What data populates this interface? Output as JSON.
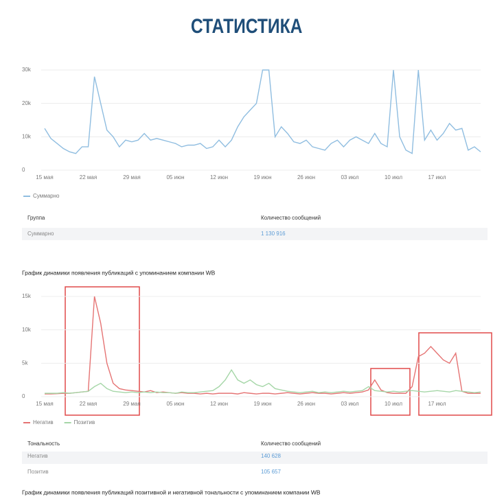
{
  "title": "СТАТИСТИКА",
  "chart_data": [
    {
      "type": "line",
      "categories": [
        "15 мая",
        null,
        null,
        null,
        null,
        null,
        null,
        "22 мая",
        null,
        null,
        null,
        null,
        null,
        null,
        "29 мая",
        null,
        null,
        null,
        null,
        null,
        null,
        "05 июн",
        null,
        null,
        null,
        null,
        null,
        null,
        "12 июн",
        null,
        null,
        null,
        null,
        null,
        null,
        "19 июн",
        null,
        null,
        null,
        null,
        null,
        null,
        "26 июн",
        null,
        null,
        null,
        null,
        null,
        null,
        "03 июл",
        null,
        null,
        null,
        null,
        null,
        null,
        "10 июл",
        null,
        null,
        null,
        null,
        null,
        null,
        "17 июл",
        null,
        null,
        null,
        null,
        null,
        null,
        null
      ],
      "series": [
        {
          "name": "Суммарно",
          "color": "#8fbde0",
          "values": [
            12500,
            9500,
            8000,
            6500,
            5500,
            5000,
            7000,
            7000,
            28000,
            20000,
            12000,
            10000,
            7000,
            9000,
            8500,
            9000,
            11000,
            9000,
            9500,
            9000,
            8500,
            8000,
            7000,
            7500,
            7500,
            8000,
            6500,
            7000,
            9000,
            7000,
            9000,
            13000,
            16000,
            18000,
            20000,
            30000,
            30000,
            10000,
            13000,
            11000,
            8500,
            8000,
            9000,
            7000,
            6500,
            6000,
            8000,
            9000,
            7000,
            9000,
            10000,
            9000,
            8000,
            11000,
            8000,
            7000,
            30000,
            10000,
            6000,
            5000,
            30000,
            9000,
            12000,
            9000,
            11000,
            14000,
            12000,
            12500,
            6000,
            7000,
            5500
          ]
        }
      ],
      "ylim": [
        0,
        30000
      ],
      "yticks": [
        0,
        {
          "value": 10000,
          "label": "10k"
        },
        {
          "value": 20000,
          "label": "20k"
        },
        {
          "value": 30000,
          "label": "30k"
        }
      ],
      "grid": true
    },
    {
      "type": "line",
      "categories": [
        "15 мая",
        null,
        null,
        null,
        null,
        null,
        null,
        "22 мая",
        null,
        null,
        null,
        null,
        null,
        null,
        "29 мая",
        null,
        null,
        null,
        null,
        null,
        null,
        "05 июн",
        null,
        null,
        null,
        null,
        null,
        null,
        "12 июн",
        null,
        null,
        null,
        null,
        null,
        null,
        "19 июн",
        null,
        null,
        null,
        null,
        null,
        null,
        "26 июн",
        null,
        null,
        null,
        null,
        null,
        null,
        "03 июл",
        null,
        null,
        null,
        null,
        null,
        null,
        "10 июл",
        null,
        null,
        null,
        null,
        null,
        null,
        "17 июл",
        null,
        null,
        null,
        null,
        null,
        null,
        null
      ],
      "series": [
        {
          "name": "Негатив",
          "color": "#e57373",
          "values": [
            400,
            400,
            450,
            500,
            500,
            600,
            700,
            800,
            15000,
            11000,
            5000,
            2000,
            1200,
            1000,
            900,
            800,
            700,
            900,
            600,
            700,
            600,
            500,
            600,
            500,
            500,
            400,
            500,
            400,
            500,
            500,
            500,
            400,
            600,
            500,
            400,
            500,
            500,
            400,
            500,
            600,
            500,
            400,
            500,
            600,
            500,
            500,
            400,
            500,
            600,
            500,
            600,
            700,
            1000,
            2500,
            1000,
            600,
            500,
            500,
            500,
            1500,
            6000,
            6500,
            7500,
            6500,
            5500,
            5000,
            6500,
            800,
            500,
            500,
            500
          ]
        },
        {
          "name": "Позитив",
          "color": "#a5d6a7",
          "values": [
            500,
            500,
            500,
            600,
            500,
            600,
            700,
            800,
            1500,
            2000,
            1200,
            800,
            700,
            600,
            700,
            600,
            700,
            600,
            700,
            600,
            600,
            500,
            700,
            600,
            600,
            700,
            800,
            900,
            1500,
            2500,
            4000,
            2500,
            2000,
            2500,
            1800,
            1500,
            2000,
            1200,
            1000,
            800,
            700,
            600,
            700,
            800,
            600,
            700,
            600,
            700,
            800,
            700,
            800,
            900,
            1500,
            900,
            800,
            700,
            800,
            700,
            800,
            900,
            800,
            700,
            800,
            900,
            800,
            700,
            900,
            800,
            700,
            600,
            700
          ]
        }
      ],
      "ylim": [
        0,
        15000
      ],
      "yticks": [
        0,
        {
          "value": 5000,
          "label": "5k"
        },
        {
          "value": 10000,
          "label": "10k"
        },
        {
          "value": 15000,
          "label": "15k"
        }
      ],
      "grid": true
    }
  ],
  "tables": [
    {
      "header": [
        "Группа",
        "Количество сообщений"
      ],
      "rows": [
        [
          "Суммарно",
          "1 130 916"
        ]
      ]
    },
    {
      "header": [
        "Тональность",
        "Количество сообщений"
      ],
      "rows": [
        [
          "Негатив",
          "140 628"
        ],
        [
          "Позитив",
          "105 657"
        ]
      ]
    }
  ],
  "captions": [
    "График динамики появления публикаций с упоминанием компании WB",
    "График динамики появления публикаций позитивной и негативной тональности с упоминанием компании WB"
  ]
}
